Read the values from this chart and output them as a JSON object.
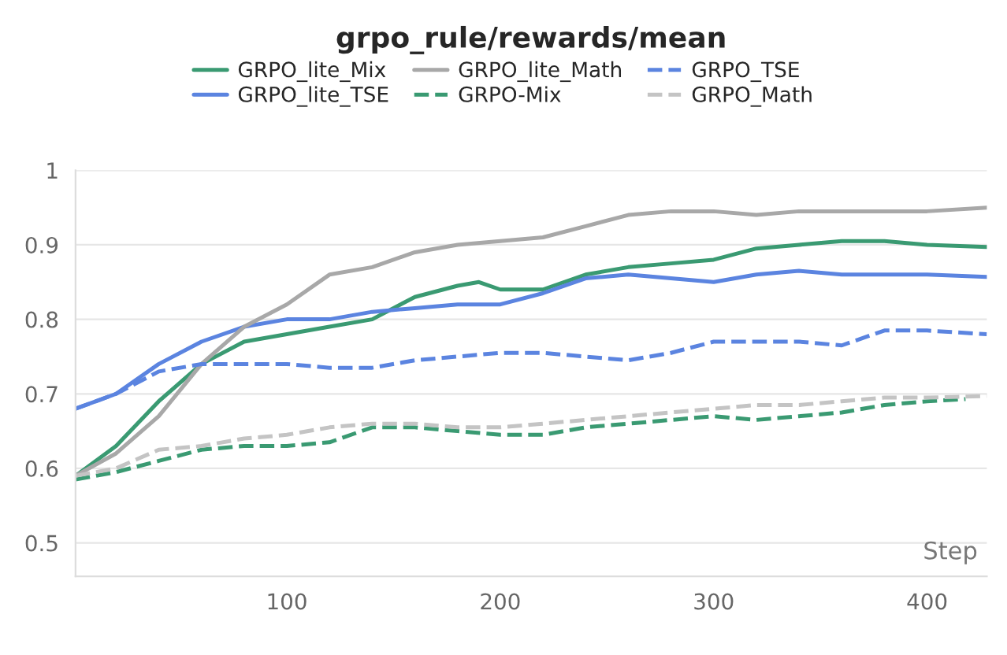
{
  "chart_data": {
    "type": "line",
    "title": "grpo_rule/rewards/mean",
    "xlabel": "Step",
    "xlim": [
      1,
      428
    ],
    "xticks": [
      100,
      200,
      300,
      400
    ],
    "ylim": [
      0.455,
      1.0
    ],
    "yticks": [
      0.5,
      0.6,
      0.7,
      0.8,
      0.9,
      1
    ],
    "grid": "y",
    "legend": "top",
    "series": [
      {
        "name": "GRPO_lite_Mix",
        "color": "#3a9a72",
        "line_style": "solid",
        "x": [
          1,
          20,
          40,
          60,
          80,
          100,
          120,
          140,
          160,
          180,
          190,
          200,
          220,
          240,
          260,
          280,
          300,
          320,
          340,
          360,
          380,
          400,
          428
        ],
        "values": [
          0.59,
          0.63,
          0.69,
          0.74,
          0.77,
          0.78,
          0.79,
          0.8,
          0.83,
          0.845,
          0.85,
          0.84,
          0.84,
          0.86,
          0.87,
          0.875,
          0.88,
          0.895,
          0.9,
          0.905,
          0.905,
          0.9,
          0.897
        ]
      },
      {
        "name": "GRPO_lite_TSE",
        "color": "#5b84e0",
        "line_style": "solid",
        "x": [
          1,
          20,
          40,
          60,
          80,
          100,
          120,
          140,
          160,
          180,
          200,
          220,
          240,
          260,
          280,
          300,
          320,
          340,
          360,
          380,
          400,
          428
        ],
        "values": [
          0.68,
          0.7,
          0.74,
          0.77,
          0.79,
          0.8,
          0.8,
          0.81,
          0.815,
          0.82,
          0.82,
          0.835,
          0.855,
          0.86,
          0.855,
          0.85,
          0.86,
          0.865,
          0.86,
          0.86,
          0.86,
          0.857
        ]
      },
      {
        "name": "GRPO_lite_Math",
        "color": "#a8a8a8",
        "line_style": "solid",
        "x": [
          1,
          20,
          40,
          60,
          80,
          100,
          120,
          140,
          160,
          180,
          200,
          220,
          240,
          260,
          280,
          300,
          320,
          340,
          360,
          380,
          400,
          428
        ],
        "values": [
          0.59,
          0.62,
          0.67,
          0.74,
          0.79,
          0.82,
          0.86,
          0.87,
          0.89,
          0.9,
          0.905,
          0.91,
          0.925,
          0.94,
          0.945,
          0.945,
          0.94,
          0.945,
          0.945,
          0.945,
          0.945,
          0.95
        ]
      },
      {
        "name": "GRPO-Mix",
        "color": "#3a9a72",
        "line_style": "dashed",
        "x": [
          1,
          20,
          40,
          60,
          80,
          100,
          120,
          140,
          160,
          180,
          200,
          220,
          240,
          260,
          280,
          300,
          320,
          340,
          360,
          380,
          400,
          418
        ],
        "values": [
          0.585,
          0.595,
          0.61,
          0.625,
          0.63,
          0.63,
          0.635,
          0.655,
          0.655,
          0.65,
          0.645,
          0.645,
          0.655,
          0.66,
          0.665,
          0.67,
          0.665,
          0.67,
          0.675,
          0.685,
          0.69,
          0.693
        ]
      },
      {
        "name": "GRPO_TSE",
        "color": "#5b84e0",
        "line_style": "dashed",
        "x": [
          1,
          20,
          40,
          60,
          80,
          100,
          120,
          140,
          160,
          180,
          200,
          220,
          240,
          260,
          280,
          300,
          320,
          340,
          360,
          380,
          400,
          428
        ],
        "values": [
          0.68,
          0.7,
          0.73,
          0.74,
          0.74,
          0.74,
          0.735,
          0.735,
          0.745,
          0.75,
          0.755,
          0.755,
          0.75,
          0.745,
          0.755,
          0.77,
          0.77,
          0.77,
          0.765,
          0.785,
          0.785,
          0.78
        ]
      },
      {
        "name": "GRPO_Math",
        "color": "#c4c4c4",
        "line_style": "dashed",
        "x": [
          1,
          20,
          40,
          60,
          80,
          100,
          120,
          140,
          160,
          180,
          200,
          220,
          240,
          260,
          280,
          300,
          320,
          340,
          360,
          380,
          400,
          428
        ],
        "values": [
          0.59,
          0.6,
          0.625,
          0.63,
          0.64,
          0.645,
          0.655,
          0.66,
          0.66,
          0.655,
          0.655,
          0.66,
          0.665,
          0.67,
          0.675,
          0.68,
          0.685,
          0.685,
          0.69,
          0.695,
          0.695,
          0.697
        ]
      }
    ]
  }
}
